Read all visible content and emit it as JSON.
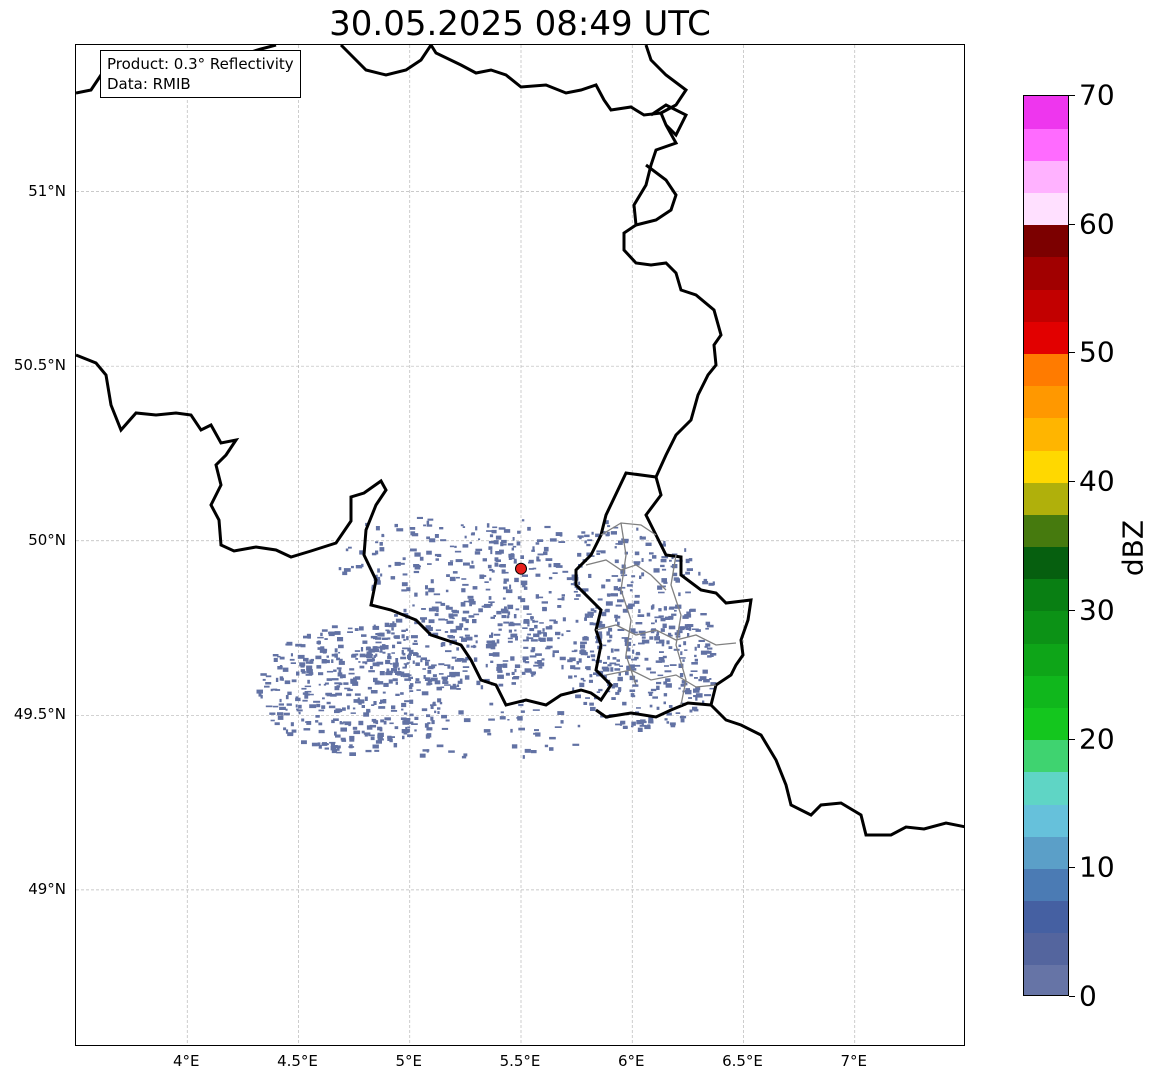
{
  "title": "30.05.2025 08:49 UTC",
  "info_box": {
    "product": "Product: 0.3° Reflectivity",
    "data": "Data: RMIB"
  },
  "map": {
    "lon_range": [
      3.5,
      7.5
    ],
    "lat_range": [
      48.55,
      51.42
    ],
    "radar_site": {
      "lon": 5.5,
      "lat": 49.92,
      "color": "#e8201c"
    },
    "gridlines": true,
    "lon_ticks": [
      {
        "value": 4.0,
        "label": "4°E"
      },
      {
        "value": 4.5,
        "label": "4.5°E"
      },
      {
        "value": 5.0,
        "label": "5°E"
      },
      {
        "value": 5.5,
        "label": "5.5°E"
      },
      {
        "value": 6.0,
        "label": "6°E"
      },
      {
        "value": 6.5,
        "label": "6.5°E"
      },
      {
        "value": 7.0,
        "label": "7°E"
      }
    ],
    "lat_ticks": [
      {
        "value": 51.0,
        "label": "51°N"
      },
      {
        "value": 50.5,
        "label": "50.5°N"
      },
      {
        "value": 50.0,
        "label": "50°N"
      },
      {
        "value": 49.5,
        "label": "49.5°N"
      },
      {
        "value": 49.0,
        "label": "49°N"
      }
    ],
    "echo_color": "#6272a4",
    "border_color": "#000000",
    "region_border_color": "#808080"
  },
  "colorbar": {
    "label": "dBZ",
    "min": 0,
    "max": 70,
    "ticks": [
      {
        "value": 0,
        "label": "0"
      },
      {
        "value": 10,
        "label": "10"
      },
      {
        "value": 20,
        "label": "20"
      },
      {
        "value": 30,
        "label": "30"
      },
      {
        "value": 40,
        "label": "40"
      },
      {
        "value": 50,
        "label": "50"
      },
      {
        "value": 60,
        "label": "60"
      },
      {
        "value": 70,
        "label": "70"
      }
    ],
    "colors": [
      "#6674a6",
      "#54659e",
      "#4560a2",
      "#4b7bb4",
      "#5b9fc8",
      "#66c1db",
      "#5fd5c5",
      "#3fd370",
      "#14c61e",
      "#10b71c",
      "#0ea518",
      "#0c9216",
      "#097f13",
      "#065f0f",
      "#467a0e",
      "#b0b00b",
      "#ffd800",
      "#ffb500",
      "#ff9800",
      "#ff7b00",
      "#e20000",
      "#c20000",
      "#a10000",
      "#7c0000",
      "#ffe0ff",
      "#ffb2ff",
      "#ff6bff",
      "#ee36ee"
    ]
  }
}
